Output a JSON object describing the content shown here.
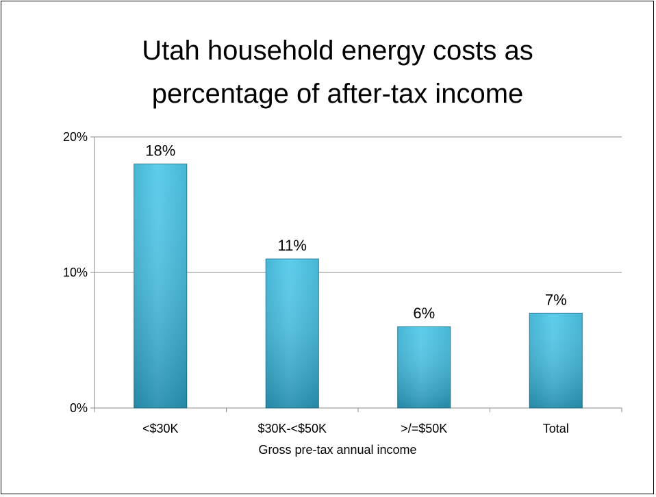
{
  "chart_data": {
    "type": "bar",
    "title_lines": [
      "Utah household energy costs as",
      "percentage of after-tax income"
    ],
    "xlabel": "Gross pre-tax annual income",
    "ylabel": "",
    "categories": [
      "<$30K",
      "$30K-<$50K",
      ">/=$50K",
      "Total"
    ],
    "values": [
      18,
      11,
      6,
      7
    ],
    "data_labels": [
      "18%",
      "11%",
      "6%",
      "7%"
    ],
    "ylim": [
      0,
      20
    ],
    "yticks": [
      0,
      10,
      20
    ],
    "ytick_labels": [
      "0%",
      "10%",
      "20%"
    ],
    "grid": true,
    "legend": "none",
    "colors": {
      "bar_light": "#4cc7ea",
      "bar_mid": "#31aed1",
      "bar_dark": "#237f9c",
      "bar_edge": "#1e6e88",
      "grid": "#888888",
      "axis": "#888888",
      "text": "#000000"
    }
  }
}
